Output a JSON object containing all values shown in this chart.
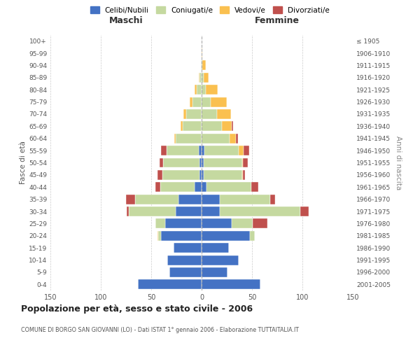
{
  "age_groups": [
    "100+",
    "95-99",
    "90-94",
    "85-89",
    "80-84",
    "75-79",
    "70-74",
    "65-69",
    "60-64",
    "55-59",
    "50-54",
    "45-49",
    "40-44",
    "35-39",
    "30-34",
    "25-29",
    "20-24",
    "15-19",
    "10-14",
    "5-9",
    "0-4"
  ],
  "birth_years": [
    "≤ 1905",
    "1906-1910",
    "1911-1915",
    "1916-1920",
    "1921-1925",
    "1926-1930",
    "1931-1935",
    "1936-1940",
    "1941-1945",
    "1946-1950",
    "1951-1955",
    "1956-1960",
    "1961-1965",
    "1966-1970",
    "1971-1975",
    "1976-1980",
    "1981-1985",
    "1986-1990",
    "1991-1995",
    "1996-2000",
    "2001-2005"
  ],
  "maschi": {
    "celibi": [
      0,
      0,
      0,
      0,
      0,
      0,
      0,
      0,
      0,
      3,
      2,
      2,
      7,
      23,
      26,
      36,
      40,
      28,
      34,
      32,
      63
    ],
    "coniugati": [
      0,
      0,
      1,
      2,
      5,
      9,
      15,
      19,
      26,
      32,
      36,
      37,
      34,
      43,
      46,
      10,
      3,
      0,
      0,
      0,
      0
    ],
    "vedovi": [
      0,
      0,
      0,
      1,
      2,
      3,
      3,
      2,
      1,
      0,
      0,
      0,
      0,
      0,
      0,
      0,
      1,
      0,
      0,
      0,
      0
    ],
    "divorziati": [
      0,
      0,
      0,
      0,
      0,
      0,
      0,
      0,
      0,
      5,
      4,
      5,
      5,
      9,
      2,
      0,
      0,
      0,
      0,
      0,
      0
    ]
  },
  "femmine": {
    "nubili": [
      0,
      0,
      0,
      0,
      0,
      0,
      0,
      0,
      0,
      3,
      2,
      2,
      5,
      18,
      18,
      30,
      48,
      27,
      37,
      26,
      58
    ],
    "coniugate": [
      0,
      0,
      1,
      2,
      4,
      9,
      15,
      20,
      28,
      34,
      38,
      38,
      44,
      50,
      80,
      21,
      5,
      0,
      0,
      0,
      0
    ],
    "vedove": [
      0,
      1,
      3,
      5,
      12,
      16,
      14,
      10,
      6,
      5,
      1,
      1,
      0,
      0,
      0,
      0,
      0,
      0,
      0,
      0,
      0
    ],
    "divorziate": [
      0,
      0,
      0,
      0,
      0,
      0,
      0,
      1,
      2,
      5,
      5,
      2,
      7,
      5,
      8,
      14,
      0,
      0,
      0,
      0,
      0
    ]
  },
  "colors": {
    "celibi": "#4472C4",
    "coniugati": "#C5D9A0",
    "vedovi": "#FAC050",
    "divorziati": "#C0504D"
  },
  "title": "Popolazione per età, sesso e stato civile - 2006",
  "subtitle": "COMUNE DI BORGO SAN GIOVANNI (LO) - Dati ISTAT 1° gennaio 2006 - Elaborazione TUTTAITALIA.IT",
  "xlabel_maschi": "Maschi",
  "xlabel_femmine": "Femmine",
  "ylabel_left": "Fasce di età",
  "ylabel_right": "Anni di nascita",
  "xlim": 150,
  "bg_color": "#ffffff",
  "grid_color": "#cccccc",
  "bar_edge_color": "#ffffff"
}
